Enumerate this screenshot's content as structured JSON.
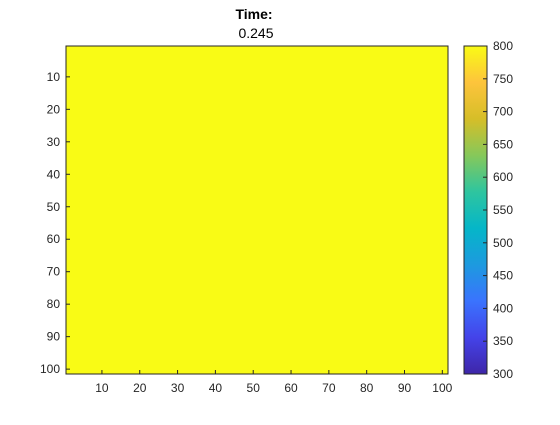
{
  "chart_data": {
    "type": "heatmap",
    "title": "Time:",
    "subtitle": "0.245",
    "xlabel": "",
    "ylabel": "",
    "x_range": [
      1,
      101
    ],
    "y_range": [
      1,
      101
    ],
    "y_reversed": true,
    "x_ticks": [
      10,
      20,
      30,
      40,
      50,
      60,
      70,
      80,
      90,
      100
    ],
    "y_ticks": [
      10,
      20,
      30,
      40,
      50,
      60,
      70,
      80,
      90,
      100
    ],
    "field_value": 800,
    "colorbar": {
      "range": [
        300,
        800
      ],
      "ticks": [
        300,
        350,
        400,
        450,
        500,
        550,
        600,
        650,
        700,
        750,
        800
      ],
      "colormap": [
        "#3e26a8",
        "#4443e9",
        "#3a73fe",
        "#1d9adf",
        "#05b6c8",
        "#2ec59f",
        "#86c85a",
        "#d6be28",
        "#fdc43c",
        "#f9fb15"
      ]
    },
    "grid": false
  }
}
